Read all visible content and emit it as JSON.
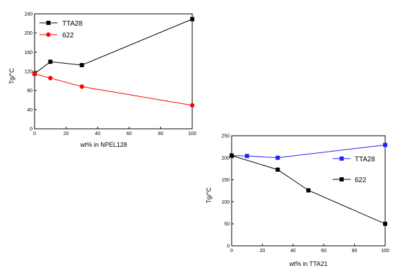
{
  "chart_data": [
    {
      "type": "line",
      "xlabel": "wt% in NPEL128",
      "ylabel": "Tg/°C",
      "xlim": [
        0,
        100
      ],
      "ylim": [
        0,
        240
      ],
      "xticks": [
        0,
        20,
        40,
        60,
        80,
        100
      ],
      "yticks": [
        0,
        40,
        80,
        120,
        160,
        200,
        240
      ],
      "legend_position": "top-left",
      "series": [
        {
          "name": "TTA28",
          "color": "#000000",
          "marker": "square",
          "x": [
            0,
            10,
            30,
            100
          ],
          "y": [
            115,
            140,
            133,
            229
          ]
        },
        {
          "name": "622",
          "color": "#ff0000",
          "marker": "circle",
          "x": [
            0,
            10,
            30,
            100
          ],
          "y": [
            115,
            106,
            88,
            49
          ]
        }
      ]
    },
    {
      "type": "line",
      "xlabel": "wt% in TTA21",
      "ylabel": "Tg/°C",
      "xlim": [
        0,
        100
      ],
      "ylim": [
        0,
        250
      ],
      "xticks": [
        0,
        20,
        40,
        60,
        80,
        100
      ],
      "yticks": [
        0,
        50,
        100,
        150,
        200,
        250
      ],
      "legend_position": "top-right",
      "series": [
        {
          "name": "TTA28",
          "color": "#1f1fff",
          "marker": "square",
          "x": [
            0,
            10,
            30,
            100
          ],
          "y": [
            205,
            204,
            200,
            229
          ]
        },
        {
          "name": "622",
          "color": "#000000",
          "marker": "square",
          "x": [
            0,
            30,
            50,
            100
          ],
          "y": [
            205,
            173,
            126,
            50
          ]
        }
      ]
    }
  ]
}
